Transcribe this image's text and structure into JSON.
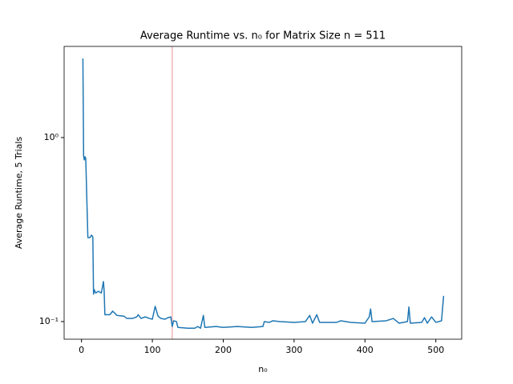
{
  "chart_data": {
    "type": "line",
    "title": "Average Runtime vs. n₀ for Matrix Size n = 511",
    "x_label": "n₀",
    "y_label": "Average Runtime, 5 Trials",
    "log_y": true,
    "xlim": [
      -24.5,
      536.5
    ],
    "ylim": [
      0.0802,
      3.13
    ],
    "xticks": [
      0,
      100,
      200,
      300,
      400,
      500
    ],
    "yticks": [
      {
        "value": 0.1,
        "label": "10⁻¹"
      },
      {
        "value": 1,
        "label": "10⁰"
      }
    ],
    "vline": 128,
    "vline_color": "#f4b6b6",
    "series": [
      {
        "color": "#1f77b4",
        "x": [
          2,
          3,
          4,
          5,
          6,
          9,
          12,
          14,
          16,
          17,
          18,
          20,
          24,
          28,
          31,
          32,
          33,
          40,
          44,
          48,
          50,
          60,
          64,
          72,
          78,
          80,
          84,
          90,
          96,
          100,
          104,
          108,
          112,
          118,
          122,
          126,
          128,
          130,
          134,
          136,
          150,
          160,
          164,
          168,
          172,
          174,
          190,
          200,
          220,
          240,
          256,
          258,
          265,
          270,
          280,
          300,
          316,
          322,
          326,
          332,
          336,
          360,
          366,
          380,
          400,
          406,
          408,
          410,
          430,
          440,
          448,
          460,
          462,
          464,
          480,
          484,
          488,
          494,
          500,
          508,
          511
        ],
        "values": [
          2.69,
          0.794,
          0.756,
          0.787,
          0.771,
          0.286,
          0.286,
          0.295,
          0.289,
          0.141,
          0.149,
          0.143,
          0.146,
          0.143,
          0.165,
          0.146,
          0.109,
          0.109,
          0.114,
          0.11,
          0.108,
          0.107,
          0.104,
          0.104,
          0.106,
          0.109,
          0.104,
          0.106,
          0.104,
          0.103,
          0.121,
          0.107,
          0.104,
          0.103,
          0.105,
          0.106,
          0.094,
          0.101,
          0.1,
          0.093,
          0.092,
          0.092,
          0.094,
          0.092,
          0.108,
          0.093,
          0.094,
          0.093,
          0.094,
          0.093,
          0.094,
          0.1,
          0.099,
          0.101,
          0.1,
          0.099,
          0.1,
          0.108,
          0.098,
          0.109,
          0.099,
          0.099,
          0.101,
          0.099,
          0.098,
          0.106,
          0.117,
          0.1,
          0.101,
          0.104,
          0.098,
          0.1,
          0.12,
          0.098,
          0.099,
          0.105,
          0.098,
          0.106,
          0.099,
          0.101,
          0.138
        ]
      }
    ]
  }
}
